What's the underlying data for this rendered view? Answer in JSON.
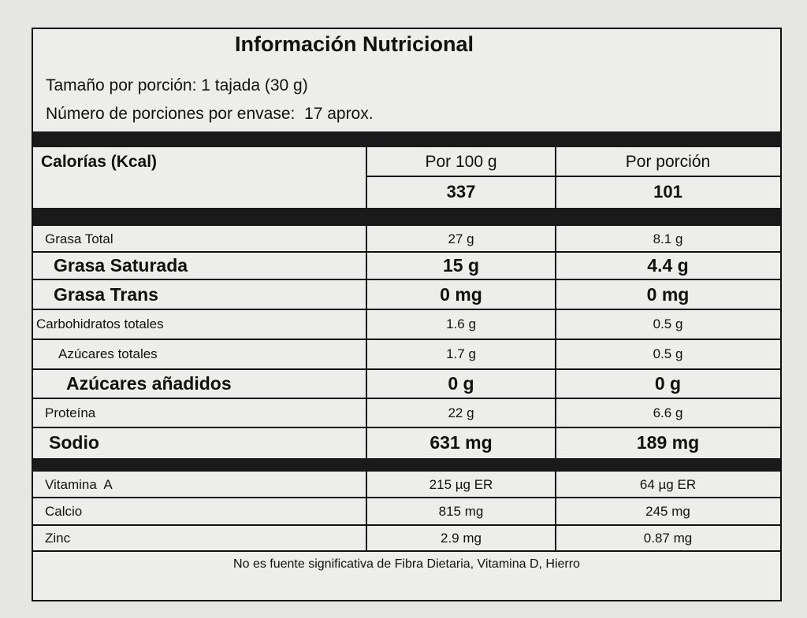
{
  "title": "Información Nutricional",
  "serving": [
    "Tamaño por porción: 1 tajada (30 g)",
    "Número de porciones por envase:  17 aprox."
  ],
  "calories": {
    "label": "Calorías (Kcal)",
    "headers": [
      "Por 100 g",
      "Por porción"
    ],
    "values": [
      "337",
      "101"
    ]
  },
  "nutrients": [
    [
      "Grasa Total",
      "27 g",
      "8.1 g"
    ],
    [
      "Grasa Saturada",
      "15 g",
      "4.4 g"
    ],
    [
      "Grasa Trans",
      "0 mg",
      "0 mg"
    ],
    [
      "Carbohidratos totales",
      "1.6 g",
      "0.5 g"
    ],
    [
      "Azúcares totales",
      "1.7 g",
      "0.5 g"
    ],
    [
      "Azúcares añadidos",
      "0 g",
      "0 g"
    ],
    [
      "Proteína",
      "22 g",
      "6.6 g"
    ],
    [
      "Sodio",
      "631 mg",
      "189 mg"
    ]
  ],
  "vitamins": [
    [
      "Vitamina  A",
      "215 µg ER",
      "64 µg ER"
    ],
    [
      "Calcio",
      "815 mg",
      "245 mg"
    ],
    [
      "Zinc",
      "2.9 mg",
      "0.87 mg"
    ]
  ],
  "footnote": "No es fuente significativa de Fibra Dietaria, Vitamina D, Hierro"
}
